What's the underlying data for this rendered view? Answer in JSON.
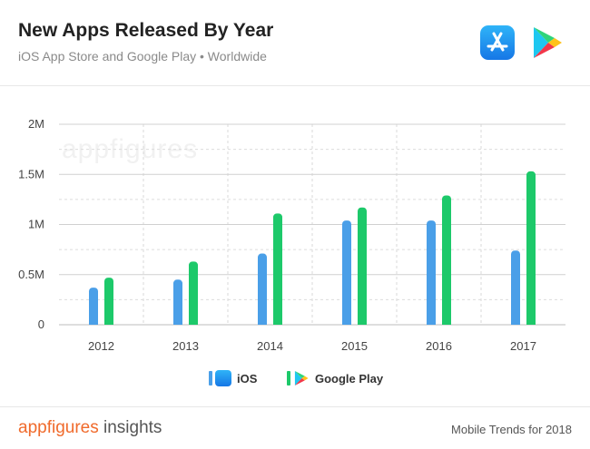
{
  "header": {
    "title": "New Apps Released By Year",
    "subtitle": "iOS App Store and Google Play • Worldwide",
    "icons": [
      "app-store-icon",
      "google-play-icon"
    ]
  },
  "watermark": "appfigures",
  "chart_data": {
    "type": "bar",
    "categories": [
      "2012",
      "2013",
      "2014",
      "2015",
      "2016",
      "2017"
    ],
    "series": [
      {
        "name": "iOS",
        "color": "#4a9fe8",
        "values": [
          0.37,
          0.45,
          0.71,
          1.04,
          1.04,
          0.74
        ]
      },
      {
        "name": "Google Play",
        "color": "#1dc96a",
        "values": [
          0.47,
          0.63,
          1.11,
          1.17,
          1.29,
          1.53
        ]
      }
    ],
    "yticks": [
      {
        "value": 0,
        "label": "0"
      },
      {
        "value": 0.5,
        "label": "0.5M"
      },
      {
        "value": 1,
        "label": "1M"
      },
      {
        "value": 1.5,
        "label": "1.5M"
      },
      {
        "value": 2,
        "label": "2M"
      }
    ],
    "ylim": [
      0,
      2
    ],
    "unit": "millions",
    "grid": true,
    "legend_position": "bottom"
  },
  "footer": {
    "brand_main": "appfigures",
    "brand_sub": " insights",
    "note": "Mobile Trends for 2018"
  }
}
